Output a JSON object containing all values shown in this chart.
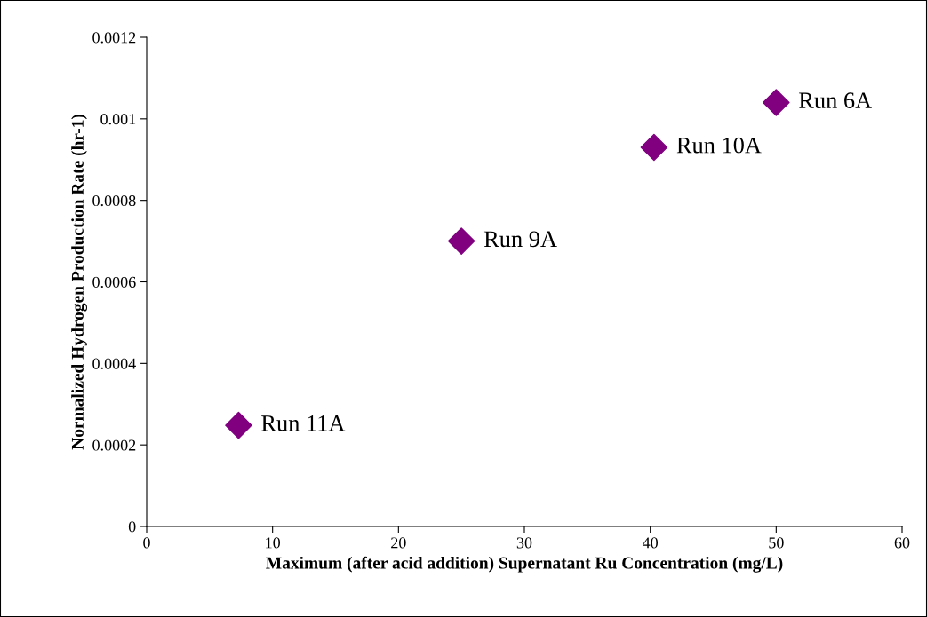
{
  "chart_data": {
    "type": "scatter",
    "xlabel": "Maximum (after acid addition) Supernatant Ru Concentration (mg/L)",
    "ylabel": "Normalized Hydrogen Production Rate (hr-1)",
    "x": [
      7.3,
      25.0,
      40.3,
      50.0
    ],
    "series": [
      {
        "color": "#800080",
        "values": [
          0.000248,
          0.0007,
          0.00093,
          0.00104
        ]
      }
    ],
    "marker": "diamond",
    "xlim": [
      0,
      60
    ],
    "xticks": [
      0,
      10,
      20,
      30,
      40,
      50,
      60
    ],
    "ylim": [
      0,
      0.0012
    ],
    "yticks": [
      0,
      0.0002,
      0.0004,
      0.0006,
      0.0008,
      0.001,
      0.0012
    ],
    "grid": false,
    "legend": false,
    "annotations": [
      {
        "text": "Run 11A",
        "x": 7.3,
        "y": 0.000248
      },
      {
        "text": "Run 9A",
        "x": 25.0,
        "y": 0.0007
      },
      {
        "text": "Run 10A",
        "x": 40.3,
        "y": 0.00093
      },
      {
        "text": "Run 6A",
        "x": 50.0,
        "y": 0.00104
      }
    ]
  }
}
